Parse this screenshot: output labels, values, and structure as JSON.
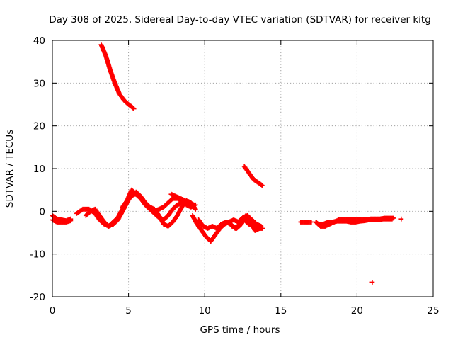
{
  "chart_data": {
    "type": "scatter",
    "title": "Day 308 of 2025, Sidereal Day-to-day VTEC variation (SDTVAR) for receiver kitg",
    "xlabel": "GPS time / hours",
    "ylabel": "SDTVAR / TECUs",
    "xlim": [
      0,
      25
    ],
    "ylim": [
      -20,
      40
    ],
    "xticks": [
      0,
      5,
      10,
      15,
      20,
      25
    ],
    "yticks": [
      -20,
      -10,
      0,
      10,
      20,
      30,
      40
    ],
    "xtick_labels": [
      "0",
      "5",
      "10",
      "15",
      "20",
      "25"
    ],
    "ytick_labels": [
      "-20",
      "-10",
      "0",
      "10",
      "20",
      "30",
      "40"
    ],
    "grid": true,
    "marker": "+",
    "series": [
      {
        "name": "SDTVAR",
        "color": "#ff0000",
        "tracks": [
          {
            "x": [
              3.2,
              3.5,
              3.8,
              4.1,
              4.4,
              4.7,
              5.0,
              5.2,
              5.35
            ],
            "y": [
              39,
              36.5,
              33,
              30,
              27.5,
              26,
              25,
              24.5,
              24
            ]
          },
          {
            "x": [
              12.6,
              12.8,
              13.0,
              13.2,
              13.4,
              13.6,
              13.8
            ],
            "y": [
              10.5,
              9.5,
              8.5,
              7.5,
              7,
              6.5,
              6
            ]
          },
          {
            "x": [
              0,
              0.3,
              0.6,
              0.9,
              1.2
            ],
            "y": [
              -1,
              -1.8,
              -2,
              -2.2,
              -1.8
            ]
          },
          {
            "x": [
              0,
              0.3,
              0.6,
              0.9,
              1.2
            ],
            "y": [
              -2,
              -2.5,
              -2.5,
              -2.5,
              -2.2
            ]
          },
          {
            "x": [
              1.6,
              2.0,
              2.4,
              2.8,
              3.1,
              3.4,
              3.7,
              4.0,
              4.3,
              4.6,
              4.9,
              5.2,
              5.5,
              5.8,
              6.1,
              6.4,
              6.7,
              7.0,
              7.3,
              7.6,
              7.9,
              8.2,
              8.5,
              8.8,
              9.1,
              9.4
            ],
            "y": [
              -0.5,
              0.5,
              0.5,
              -0.5,
              -2,
              -3,
              -3.5,
              -2.5,
              -1.5,
              0.5,
              2.5,
              3.5,
              4.5,
              3.5,
              2,
              0.5,
              0,
              0.5,
              1,
              2,
              3,
              3,
              2.5,
              1.5,
              1,
              1.5
            ]
          },
          {
            "x": [
              2.2,
              2.5,
              2.8,
              3.1,
              3.4,
              3.7,
              4.0,
              4.3,
              4.6,
              4.9,
              5.2,
              5.5,
              5.8,
              6.1,
              6.4,
              6.7,
              7.0,
              7.3,
              7.6,
              7.9,
              8.2,
              8.5,
              8.8,
              9.1
            ],
            "y": [
              -1,
              0,
              0.5,
              -1,
              -2.5,
              -3.5,
              -3,
              -2,
              0,
              2,
              4,
              4,
              3,
              1.5,
              0.5,
              -0.5,
              -1.5,
              -2,
              -1,
              0.5,
              1.5,
              2,
              2,
              1.5
            ]
          },
          {
            "x": [
              4.6,
              4.9,
              5.2,
              5.5,
              5.8,
              6.1,
              6.4,
              6.7,
              7.0,
              7.3,
              7.6,
              7.9,
              8.2,
              8.5,
              8.8,
              9.1,
              9.4
            ],
            "y": [
              1,
              2.5,
              5,
              4,
              3,
              2,
              1,
              0.5,
              -1,
              -3,
              -3.5,
              -2.5,
              -1,
              1,
              2.5,
              2,
              0.5
            ]
          },
          {
            "x": [
              7.8,
              8.1,
              8.4,
              8.7,
              9.0,
              9.3
            ],
            "y": [
              4,
              3.5,
              3,
              2.5,
              2,
              1.5
            ]
          },
          {
            "x": [
              9.2,
              9.5,
              9.8,
              10.1,
              10.4,
              10.7,
              11.0,
              11.3,
              11.6,
              11.9,
              12.2,
              12.5,
              12.8,
              13.1,
              13.4,
              13.7
            ],
            "y": [
              -1,
              -3,
              -4.5,
              -6,
              -7,
              -5.5,
              -4,
              -3,
              -2.5,
              -2,
              -2.5,
              -1.5,
              -1,
              -2,
              -3,
              -3.5
            ]
          },
          {
            "x": [
              9.6,
              9.9,
              10.2,
              10.5,
              10.8,
              11.1,
              11.4,
              11.7,
              12.0,
              12.3,
              12.6,
              12.9,
              13.2,
              13.5,
              13.8
            ],
            "y": [
              -2,
              -3.5,
              -4,
              -3.5,
              -4,
              -3,
              -2.5,
              -3,
              -4,
              -3,
              -2,
              -3,
              -3.5,
              -4,
              -4
            ]
          },
          {
            "x": [
              11.8,
              12.1,
              12.4,
              12.7,
              13.0,
              13.3,
              13.6
            ],
            "y": [
              -3.5,
              -4,
              -3,
              -1,
              -2.5,
              -4.5,
              -4
            ]
          },
          {
            "x": [
              16.3,
              16.5,
              16.8,
              17.0
            ],
            "y": [
              -2.5,
              -2.5,
              -2.5,
              -2.5
            ]
          },
          {
            "x": [
              17.3,
              17.6,
              17.9,
              18.2,
              18.5,
              18.8,
              19.1,
              19.4,
              19.7,
              20.0,
              20.3,
              20.6,
              20.9,
              21.2,
              21.5,
              21.8,
              22.1,
              22.4
            ],
            "y": [
              -2.5,
              -3.5,
              -3.5,
              -3,
              -2.5,
              -2,
              -2,
              -2,
              -2,
              -2,
              -2,
              -2,
              -1.8,
              -1.8,
              -1.8,
              -1.6,
              -1.6,
              -1.6
            ]
          },
          {
            "x": [
              17.5,
              17.8,
              18.1,
              18.4,
              18.7,
              19.0,
              19.3,
              19.6,
              19.9,
              20.2,
              20.5,
              20.8,
              21.1,
              21.4,
              21.7,
              22.0,
              22.3
            ],
            "y": [
              -3,
              -3,
              -2.5,
              -2.5,
              -2.3,
              -2.3,
              -2.3,
              -2.5,
              -2.5,
              -2.3,
              -2.2,
              -2,
              -2,
              -2,
              -1.8,
              -1.8,
              -1.8
            ]
          },
          {
            "x": [
              22.9
            ],
            "y": [
              -1.8
            ]
          },
          {
            "x": [
              21.0
            ],
            "y": [
              -16.6
            ]
          }
        ]
      }
    ]
  }
}
